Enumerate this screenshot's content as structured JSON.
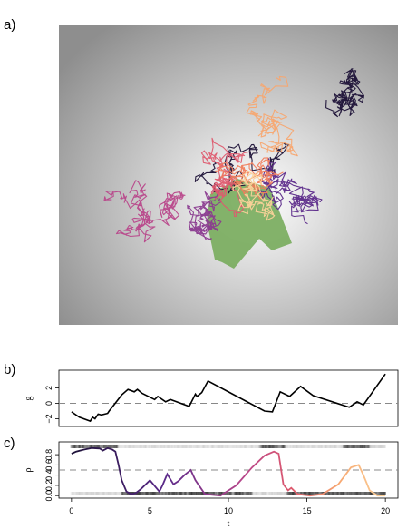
{
  "panel_labels": {
    "a": "a)",
    "b": "b)",
    "c": "c)"
  },
  "colors": {
    "walk_palette": [
      "#1b1036",
      "#3b1f6b",
      "#5c2a8a",
      "#8a3a8f",
      "#b8468a",
      "#de5a6e",
      "#f07d5c",
      "#f7a770",
      "#fbd29a"
    ],
    "polygon_fill": "#79ad5e",
    "background_edge": "#8e8e8e",
    "background_center": "#ffffff"
  },
  "chart_data": [
    {
      "type": "line",
      "name": "panel-a-walk",
      "title": "",
      "xlabel": "",
      "ylabel": "",
      "axes": "none",
      "walk_steps": 1400
    },
    {
      "type": "line",
      "name": "panel-b",
      "xlabel": "",
      "ylabel": "g",
      "xlim": [
        -0.8,
        20.8
      ],
      "ylim": [
        -3,
        4.3
      ],
      "yticks": [
        -2,
        0,
        2
      ],
      "ytick_labels": [
        "−2",
        "0",
        "2"
      ],
      "reference_line": 0,
      "x": [
        0,
        0.5,
        1.2,
        1.35,
        1.5,
        1.7,
        1.9,
        2.3,
        2.4,
        3.2,
        3.6,
        4.0,
        4.2,
        4.5,
        5.3,
        5.5,
        6.0,
        6.3,
        7.5,
        7.9,
        8.0,
        8.3,
        8.7,
        12.3,
        12.8,
        13.3,
        13.9,
        14.6,
        15.4,
        17.7,
        18.2,
        18.6,
        20.0
      ],
      "y": [
        -1.1,
        -1.8,
        -2.3,
        -1.8,
        -2.0,
        -1.4,
        -1.5,
        -1.3,
        -1.0,
        1.1,
        1.8,
        1.5,
        1.8,
        1.3,
        0.5,
        0.9,
        0.2,
        0.5,
        -0.4,
        1.2,
        0.9,
        1.4,
        2.9,
        -1.0,
        -1.1,
        1.5,
        0.9,
        2.2,
        1.0,
        -0.5,
        0.2,
        -0.2,
        3.8
      ]
    },
    {
      "type": "line",
      "name": "panel-c",
      "xlabel": "t",
      "ylabel": "ρ",
      "xlim": [
        -0.8,
        20.8
      ],
      "ylim": [
        -0.05,
        1.05
      ],
      "xticks": [
        0,
        5,
        10,
        15,
        20
      ],
      "yticks": [
        0.0,
        0.2,
        0.4,
        0.6,
        0.8
      ],
      "ytick_labels": [
        "0.0",
        "0.2",
        "0.4",
        "0.6",
        "0.8"
      ],
      "reference_line": 0.5,
      "x": [
        0,
        0.3,
        0.8,
        1.3,
        1.8,
        2.0,
        2.3,
        2.6,
        2.8,
        3.0,
        3.2,
        3.5,
        3.8,
        4.1,
        4.4,
        5.0,
        5.6,
        5.8,
        6.1,
        6.5,
        6.8,
        7.2,
        7.6,
        7.9,
        8.5,
        9.5,
        10.5,
        11.5,
        12.3,
        12.9,
        13.2,
        13.5,
        13.8,
        14.0,
        14.4,
        15.2,
        16.0,
        17.0,
        17.8,
        18.3,
        18.6,
        19.0,
        19.5,
        20.0
      ],
      "y": [
        0.82,
        0.86,
        0.9,
        0.93,
        0.92,
        0.88,
        0.93,
        0.9,
        0.86,
        0.6,
        0.3,
        0.08,
        0.03,
        0.05,
        0.12,
        0.3,
        0.08,
        0.2,
        0.42,
        0.22,
        0.28,
        0.4,
        0.5,
        0.3,
        0.03,
        0.0,
        0.2,
        0.55,
        0.78,
        0.86,
        0.82,
        0.22,
        0.1,
        0.15,
        0.03,
        0.0,
        0.03,
        0.22,
        0.55,
        0.6,
        0.4,
        0.1,
        0.0,
        0.0
      ],
      "gradient": true
    }
  ]
}
